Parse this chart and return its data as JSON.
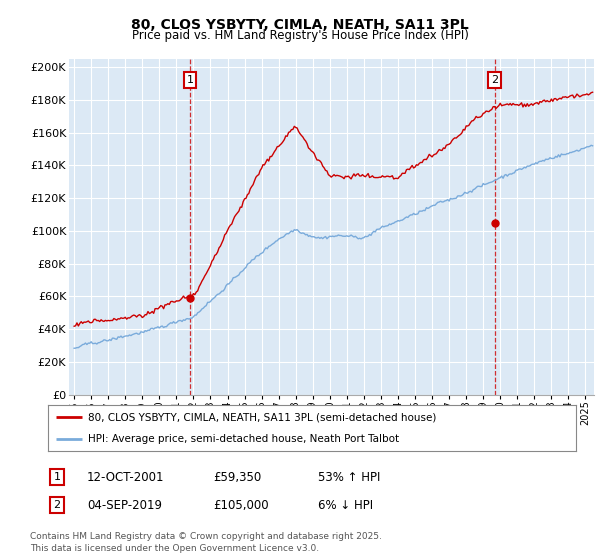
{
  "title": "80, CLOS YSBYTY, CIMLA, NEATH, SA11 3PL",
  "subtitle": "Price paid vs. HM Land Registry's House Price Index (HPI)",
  "ylabel_ticks": [
    "£0",
    "£20K",
    "£40K",
    "£60K",
    "£80K",
    "£100K",
    "£120K",
    "£140K",
    "£160K",
    "£180K",
    "£200K"
  ],
  "ytick_vals": [
    0,
    20000,
    40000,
    60000,
    80000,
    100000,
    120000,
    140000,
    160000,
    180000,
    200000
  ],
  "ylim": [
    0,
    205000
  ],
  "xlim_start": 1994.7,
  "xlim_end": 2025.5,
  "hpi_color": "#7aabdb",
  "price_color": "#cc0000",
  "bg_color": "#dce9f5",
  "plot_bg": "#dce9f5",
  "marker1_date": 2001.79,
  "marker1_price": 59350,
  "marker2_date": 2019.67,
  "marker2_price": 105000,
  "legend_line1": "80, CLOS YSBYTY, CIMLA, NEATH, SA11 3PL (semi-detached house)",
  "legend_line2": "HPI: Average price, semi-detached house, Neath Port Talbot",
  "footer": "Contains HM Land Registry data © Crown copyright and database right 2025.\nThis data is licensed under the Open Government Licence v3.0."
}
